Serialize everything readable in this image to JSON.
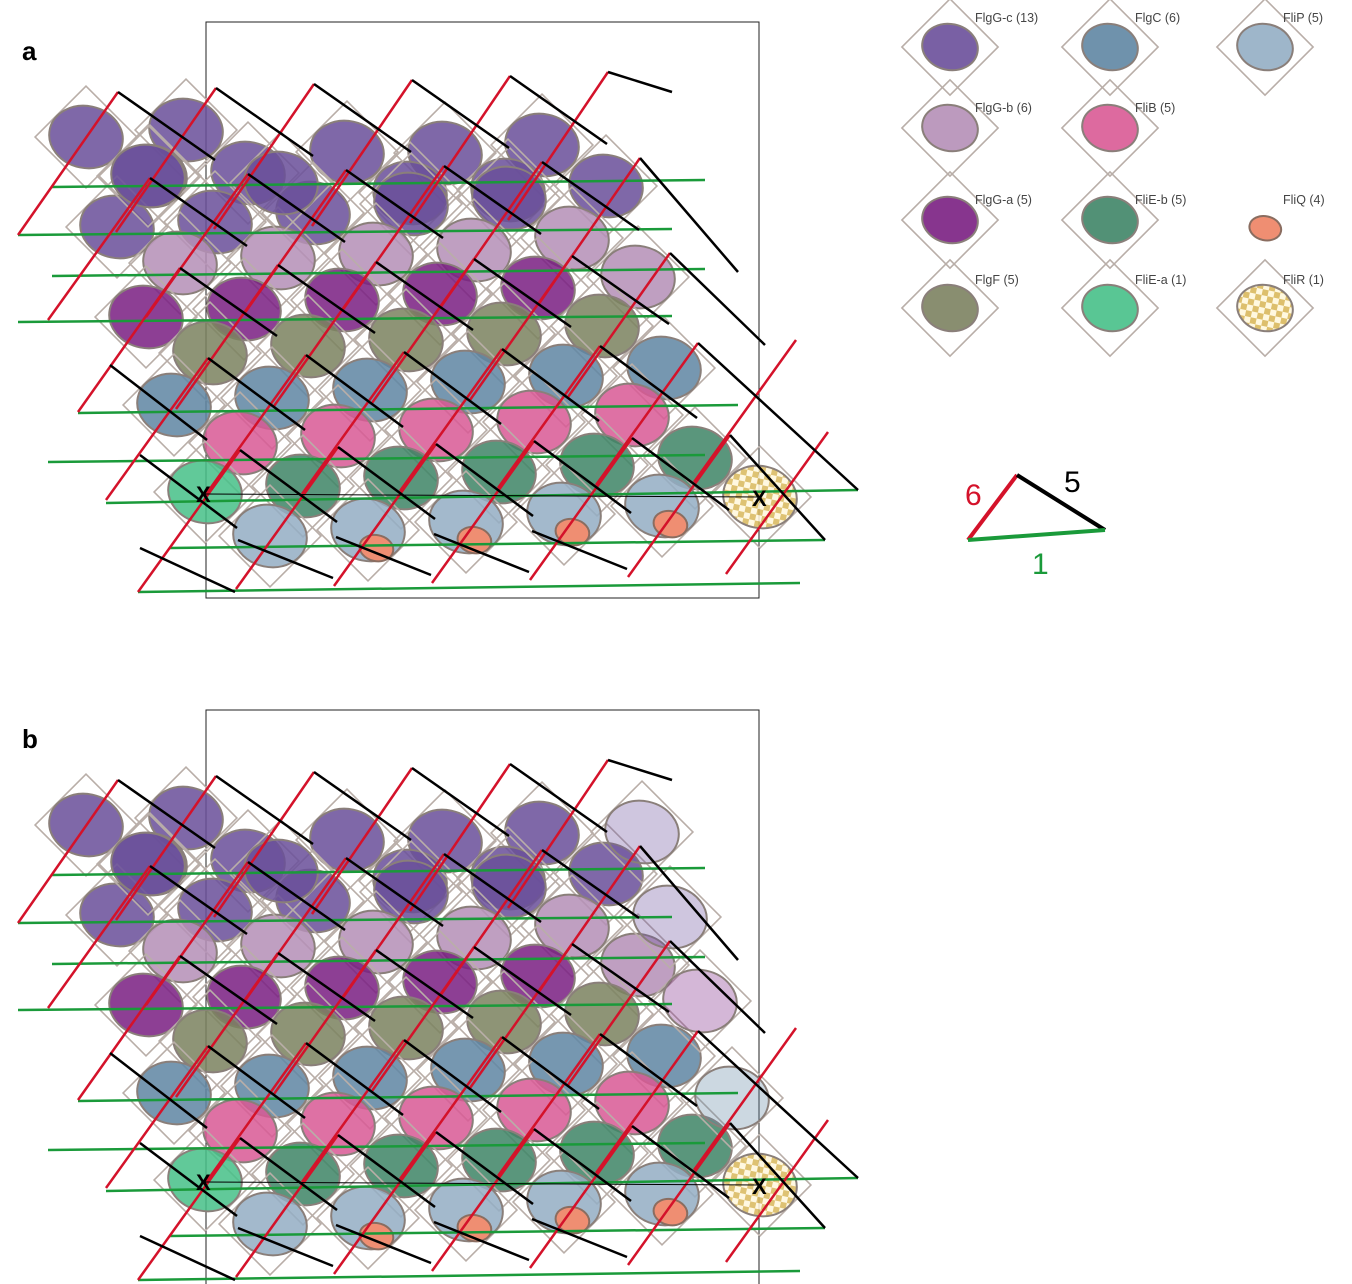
{
  "panels": [
    {
      "letter": "a",
      "marker": "X"
    },
    {
      "letter": "b",
      "marker": "X"
    }
  ],
  "legend": [
    {
      "label": "FlgG-c (13)",
      "color": "#6a4f9a"
    },
    {
      "label": "FlgC (6)",
      "color": "#5f86a3"
    },
    {
      "label": "FliP (5)",
      "color": "#94aec4"
    },
    {
      "label": "FlgG-b (6)",
      "color": "#b58fb7"
    },
    {
      "label": "FliB (5)",
      "color": "#d95a95"
    },
    {
      "label": "FlgG-a (5)",
      "color": "#7a1f82"
    },
    {
      "label": "FliE-b (5)",
      "color": "#3f8567"
    },
    {
      "label": "FliQ (4)",
      "color": "#ef8e72"
    },
    {
      "label": "FlgF (5)",
      "color": "#7c8260"
    },
    {
      "label": "FliE-a (1)",
      "color": "#47c088"
    },
    {
      "label": "FliR (1)",
      "color": "#e3c46e"
    }
  ],
  "helix_key": {
    "label_6": "6",
    "color_6": "#d4122a",
    "label_5": "5",
    "color_5": "#000000",
    "label_1": "1",
    "color_1": "#1a9a3a"
  }
}
